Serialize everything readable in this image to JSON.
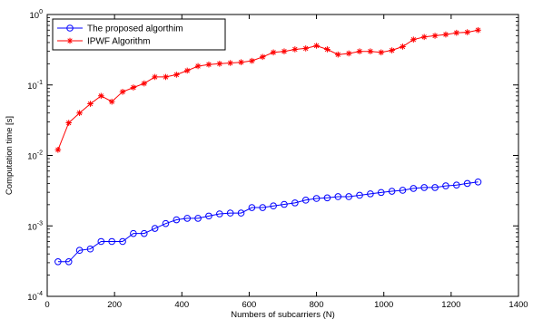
{
  "chart_data": {
    "type": "line",
    "xlabel": "Numbers of subcarriers (N)",
    "ylabel": "Computation time [s]",
    "xlim": [
      0,
      1400
    ],
    "ylim": [
      0.0001,
      1
    ],
    "yscale": "log",
    "x_ticks": [
      "0",
      "200",
      "400",
      "600",
      "800",
      "1000",
      "1200",
      "1400"
    ],
    "y_ticks": [
      {
        "base": "10",
        "exp": "-4"
      },
      {
        "base": "10",
        "exp": "-3"
      },
      {
        "base": "10",
        "exp": "-2"
      },
      {
        "base": "10",
        "exp": "-1"
      },
      {
        "base": "10",
        "exp": "0"
      }
    ],
    "grid": false,
    "legend_position": "top-left",
    "x": [
      32,
      64,
      96,
      128,
      160,
      192,
      224,
      256,
      288,
      320,
      352,
      384,
      416,
      448,
      480,
      512,
      544,
      576,
      608,
      640,
      672,
      704,
      736,
      768,
      800,
      832,
      864,
      896,
      928,
      960,
      992,
      1024,
      1056,
      1088,
      1120,
      1152,
      1184,
      1216,
      1248,
      1280
    ],
    "series": [
      {
        "name": "The proposed algorthim",
        "color": "#0000ff",
        "marker": "circle",
        "values": [
          0.00031,
          0.00031,
          0.00045,
          0.00047,
          0.0006,
          0.0006,
          0.0006,
          0.00078,
          0.00078,
          0.00092,
          0.00108,
          0.00122,
          0.00128,
          0.00128,
          0.00138,
          0.00148,
          0.00152,
          0.00152,
          0.00182,
          0.00182,
          0.00192,
          0.00202,
          0.00212,
          0.00232,
          0.00245,
          0.0025,
          0.0026,
          0.0026,
          0.00272,
          0.00285,
          0.00298,
          0.0031,
          0.0032,
          0.0034,
          0.0035,
          0.0035,
          0.0037,
          0.0038,
          0.004,
          0.0042
        ]
      },
      {
        "name": "IPWF Algorithm",
        "color": "#ff0000",
        "marker": "star",
        "values": [
          0.012,
          0.029,
          0.04,
          0.054,
          0.07,
          0.058,
          0.08,
          0.092,
          0.105,
          0.13,
          0.13,
          0.14,
          0.16,
          0.185,
          0.195,
          0.2,
          0.205,
          0.21,
          0.22,
          0.25,
          0.29,
          0.3,
          0.32,
          0.33,
          0.36,
          0.32,
          0.27,
          0.28,
          0.3,
          0.3,
          0.29,
          0.31,
          0.35,
          0.44,
          0.48,
          0.5,
          0.52,
          0.55,
          0.56,
          0.6
        ]
      }
    ]
  }
}
